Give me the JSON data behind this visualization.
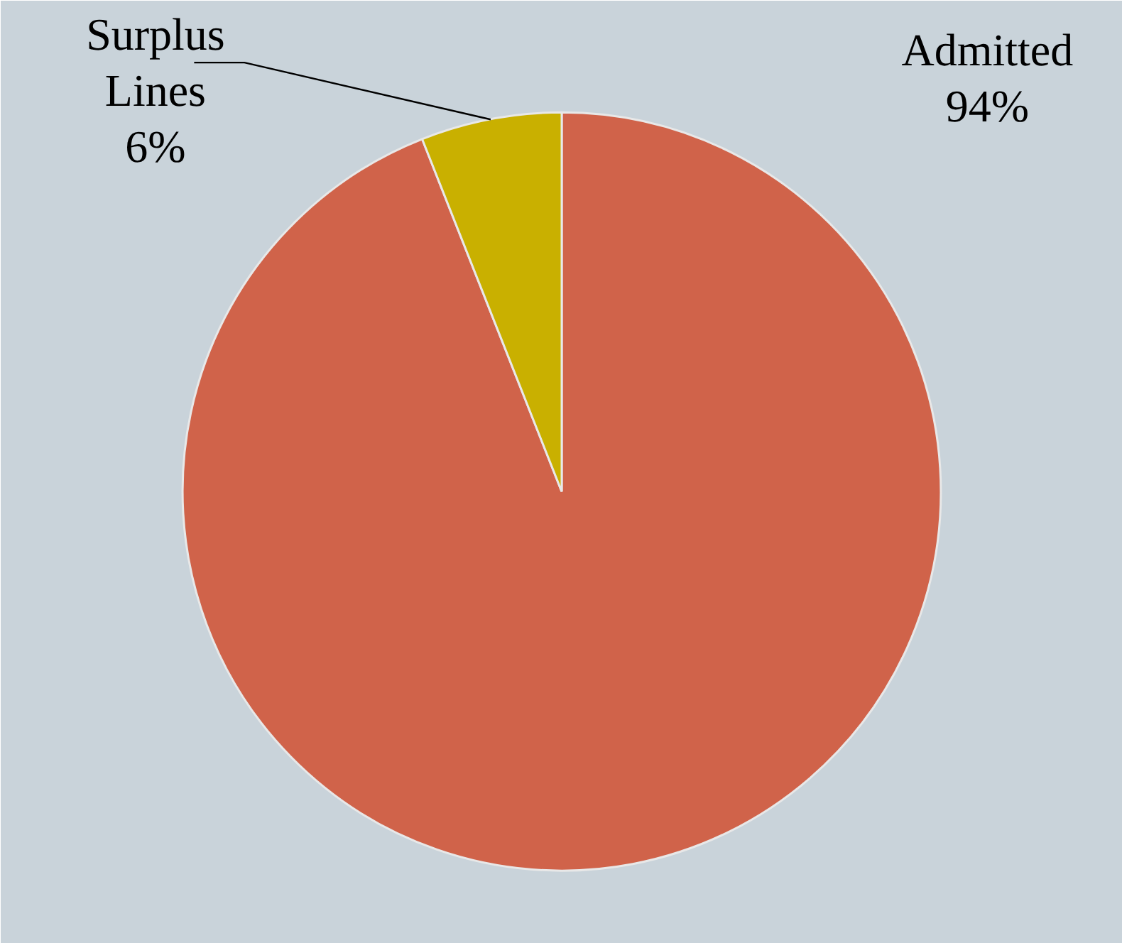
{
  "chart_data": {
    "type": "pie",
    "categories": [
      "Admitted",
      "Surplus Lines"
    ],
    "values": [
      94,
      6
    ],
    "colors": [
      "#d0634a",
      "#c9b000"
    ],
    "value_labels": [
      "94%",
      "6%"
    ]
  }
}
